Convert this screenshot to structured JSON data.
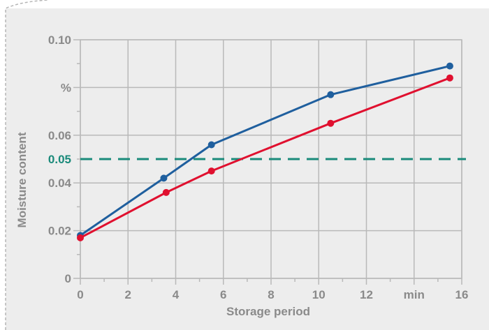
{
  "chart_data": {
    "type": "line",
    "xlabel": "Storage period",
    "ylabel": "Moisture content",
    "xlim": [
      0,
      16
    ],
    "ylim": [
      0,
      0.1
    ],
    "x_ticks": [
      0,
      2,
      4,
      6,
      8,
      10,
      12,
      14,
      16
    ],
    "x_tick_labels": [
      "0",
      "2",
      "4",
      "6",
      "8",
      "10",
      "12",
      "min",
      "16"
    ],
    "y_ticks": [
      0,
      0.02,
      0.04,
      0.06,
      0.08,
      0.1
    ],
    "y_tick_labels": [
      "0",
      "0.02",
      "0.04",
      "0.06",
      "%",
      "0.10"
    ],
    "grid": true,
    "reference_line": {
      "value": 0.05,
      "label": "0.05",
      "color": "#1a8a7a",
      "style": "dashed"
    },
    "series": [
      {
        "color": "#1f5f9e",
        "x": [
          0,
          3.5,
          5.5,
          10.5,
          15.5
        ],
        "y": [
          0.018,
          0.042,
          0.056,
          0.077,
          0.089
        ]
      },
      {
        "color": "#e0102f",
        "x": [
          0,
          3.6,
          5.5,
          10.5,
          15.5
        ],
        "y": [
          0.017,
          0.036,
          0.045,
          0.065,
          0.084
        ]
      }
    ]
  }
}
